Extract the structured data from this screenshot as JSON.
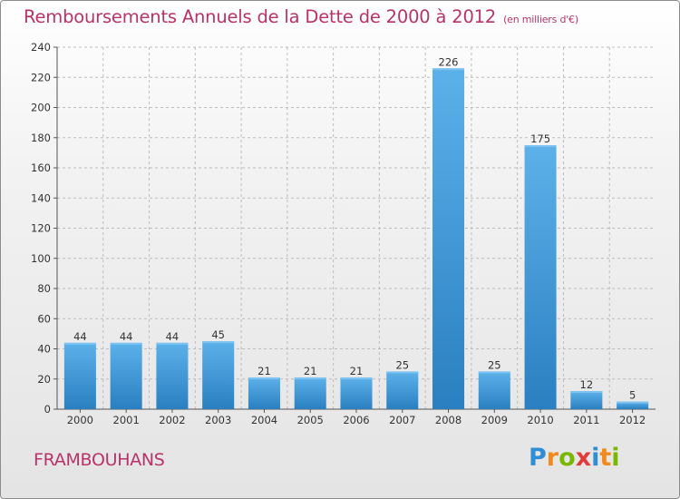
{
  "title": {
    "main": "Remboursements Annuels de la Dette de 2000 à 2012",
    "unit": "(en milliers d'€)"
  },
  "place_name": "FRAMBOUHANS",
  "brand": {
    "letters": [
      {
        "char": "P",
        "color": "#2f8fd6"
      },
      {
        "char": "r",
        "color": "#f08a1c"
      },
      {
        "char": "o",
        "color": "#7ab800"
      },
      {
        "char": "x",
        "color": "#e23b3b"
      },
      {
        "char": "i",
        "color": "#2f8fd6"
      },
      {
        "char": "t",
        "color": "#f08a1c"
      },
      {
        "char": "i",
        "color": "#7ab800"
      }
    ]
  },
  "colors": {
    "title": "#b8336a",
    "bar_light": "#5db1ea",
    "bar_dark": "#2a7fc0",
    "grid": "#bcbcbc",
    "text": "#333333"
  },
  "chart_data": {
    "type": "bar",
    "title": "Remboursements Annuels de la Dette de 2000 à 2012",
    "subtitle": "(en milliers d'€)",
    "xlabel": "",
    "ylabel": "",
    "categories": [
      "2000",
      "2001",
      "2002",
      "2003",
      "2004",
      "2005",
      "2006",
      "2007",
      "2008",
      "2009",
      "2010",
      "2011",
      "2012"
    ],
    "values": [
      44,
      44,
      44,
      45,
      21,
      21,
      21,
      25,
      226,
      25,
      175,
      12,
      5
    ],
    "data_labels": [
      "44",
      "44",
      "44",
      "45",
      "21",
      "21",
      "21",
      "25",
      "226",
      "25",
      "175",
      "12",
      "5"
    ],
    "ylim": [
      0,
      240
    ],
    "yticks": [
      0,
      20,
      40,
      60,
      80,
      100,
      120,
      140,
      160,
      180,
      200,
      220,
      240
    ],
    "grid": true,
    "legend": "none"
  }
}
